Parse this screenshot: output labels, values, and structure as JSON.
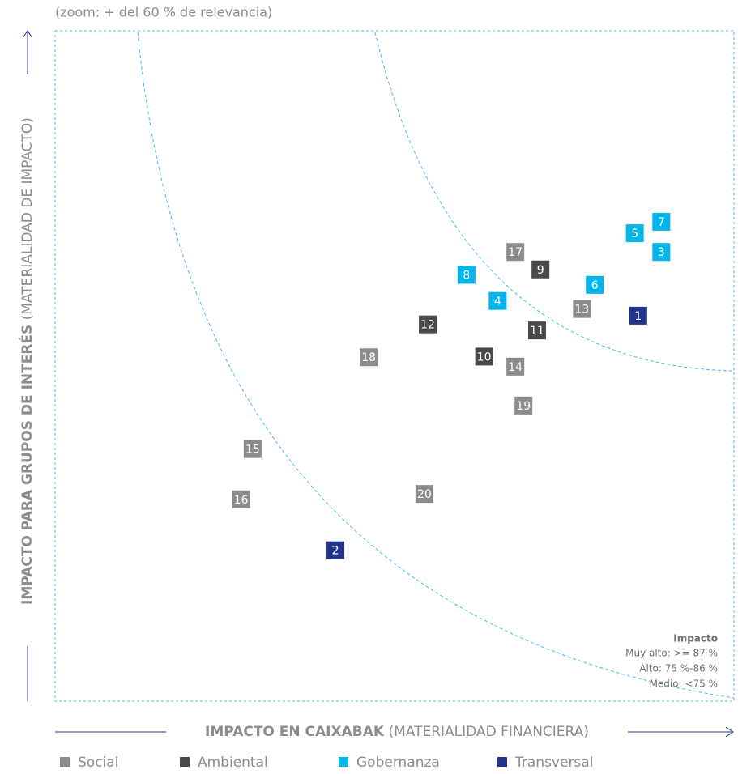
{
  "chart_data": {
    "type": "scatter",
    "subtitle": "(zoom: + del 60 % de relevancia)",
    "x_label_bold": "IMPACTO EN CAIXABAK",
    "x_label_light": "(MATERIALIDAD FINANCIERA)",
    "y_label_bold": "IMPACTO PARA GRUPOS DE INTERÉS",
    "y_label_light": "(MATERIALIDAD DE IMPACTO)",
    "xlim": [
      0,
      100
    ],
    "ylim": [
      0,
      100
    ],
    "annotation_title": "Impacto",
    "annotations": [
      "Muy alto: >= 87 %",
      "Alto: 75 %-86 %",
      "Medio: <75 %"
    ],
    "series": [
      {
        "name": "Social",
        "color": "#8c8c8c",
        "labels": [
          "13",
          "14",
          "15",
          "16",
          "17",
          "18",
          "19",
          "20"
        ],
        "x": [
          77.6,
          67.8,
          29.1,
          27.4,
          67.8,
          46.2,
          69.0,
          54.4
        ],
        "y": [
          58.5,
          49.9,
          37.6,
          30.1,
          67.0,
          51.3,
          44.1,
          30.9
        ]
      },
      {
        "name": "Ambiental",
        "color": "#4a4a4a",
        "labels": [
          "9",
          "10",
          "11",
          "12"
        ],
        "x": [
          71.5,
          63.2,
          71.0,
          54.9
        ],
        "y": [
          64.4,
          51.4,
          55.3,
          56.2
        ]
      },
      {
        "name": "Gobernanza",
        "color": "#00b4ec",
        "labels": [
          "3",
          "4",
          "5",
          "6",
          "7",
          "8"
        ],
        "x": [
          89.3,
          65.2,
          85.4,
          79.5,
          89.3,
          60.6
        ],
        "y": [
          67.0,
          59.7,
          69.8,
          62.1,
          71.5,
          63.6
        ]
      },
      {
        "name": "Transversal",
        "color": "#24348c",
        "labels": [
          "1",
          "2"
        ],
        "x": [
          85.9,
          41.3
        ],
        "y": [
          57.5,
          22.5
        ]
      }
    ]
  }
}
